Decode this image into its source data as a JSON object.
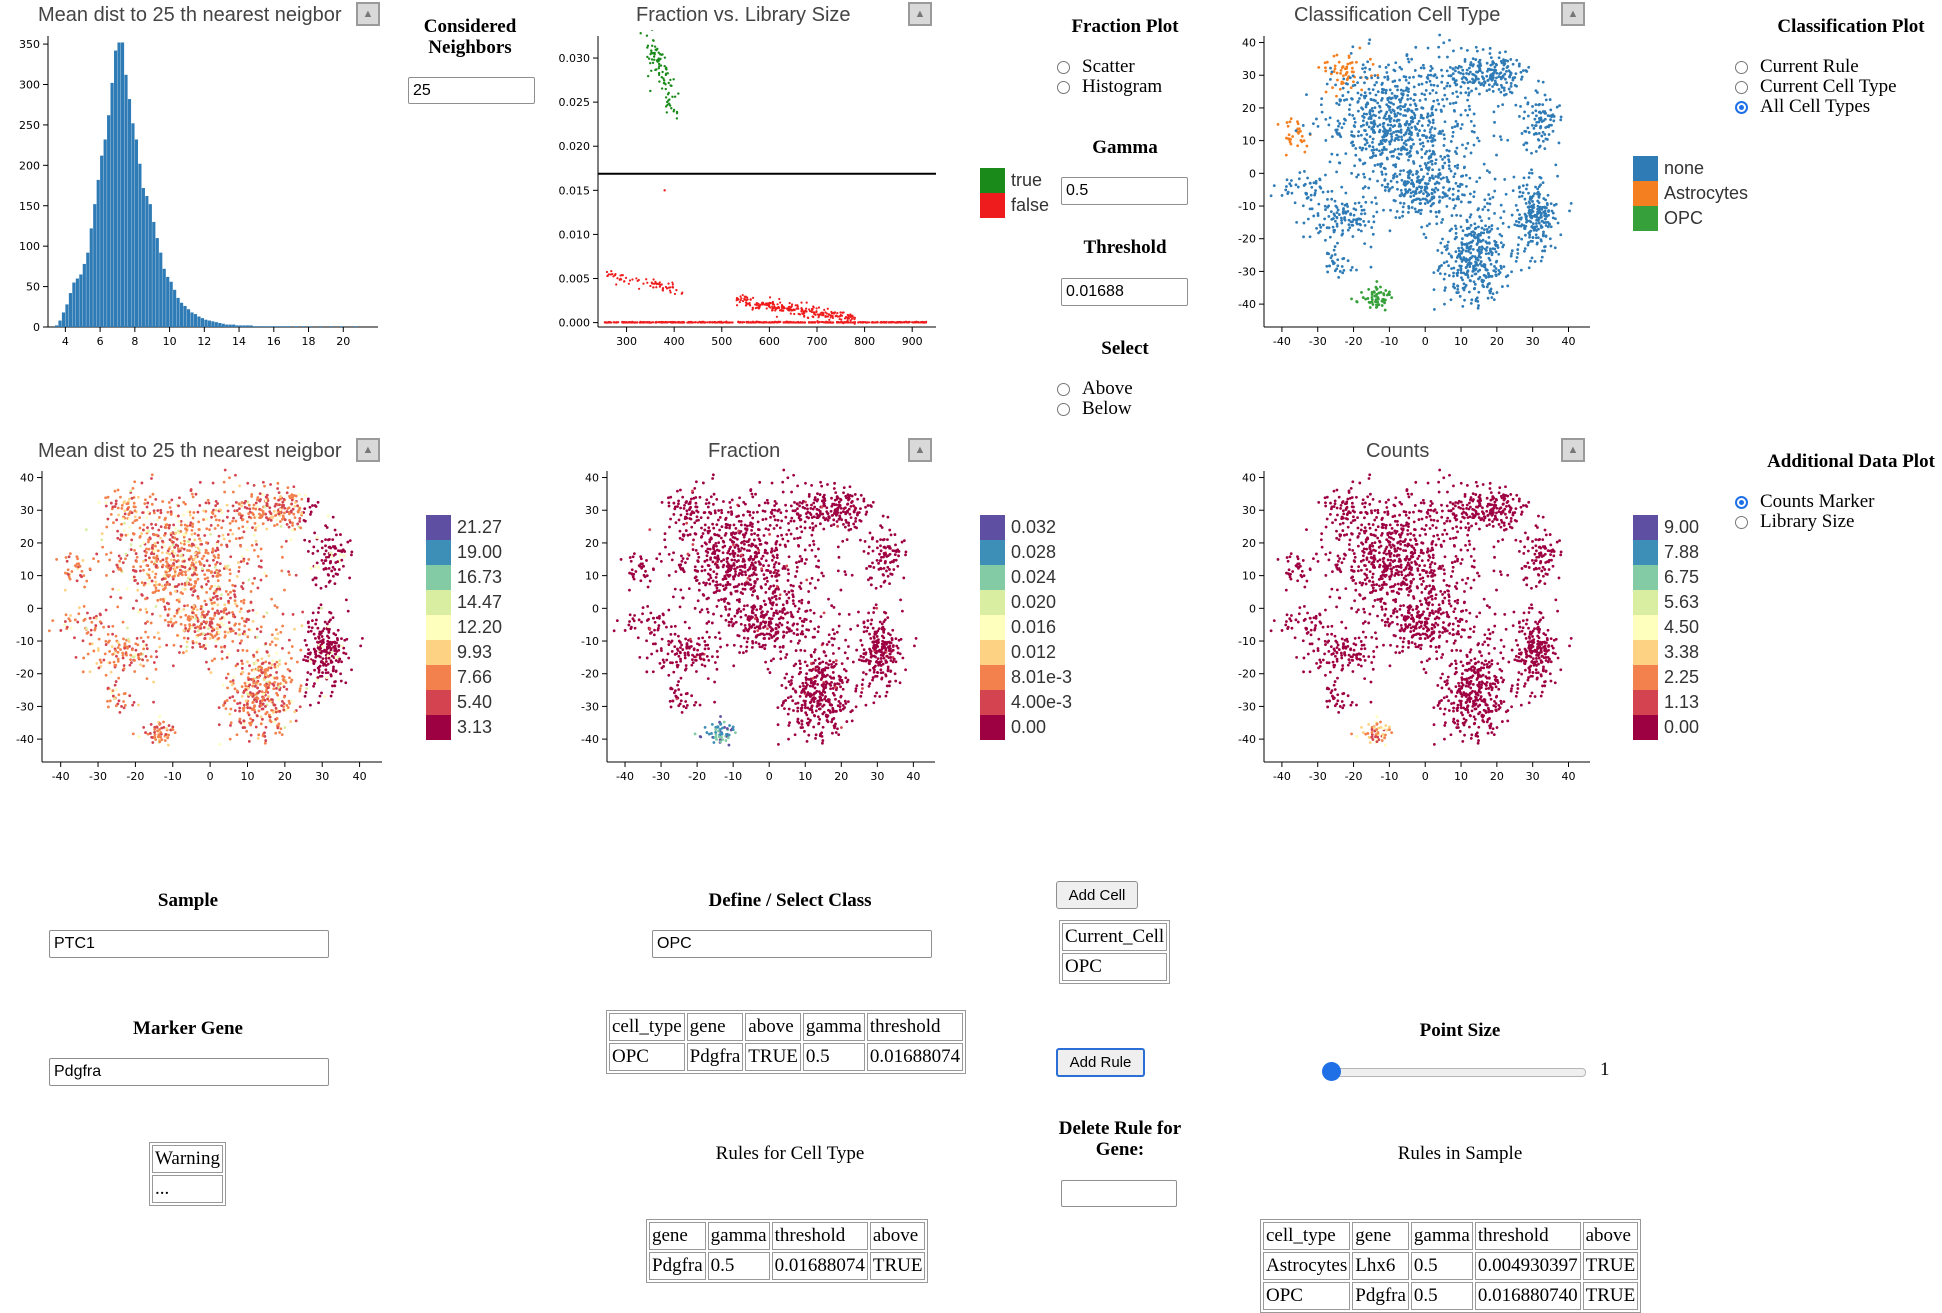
{
  "panels": {
    "hist_top": {
      "title": "Mean dist to 25 th nearest neigbor"
    },
    "frac_lib": {
      "title": "Fraction vs. Library Size"
    },
    "class_cell": {
      "title": "Classification Cell Type"
    },
    "mean_tsne": {
      "title": "Mean dist to 25 th nearest neigbor"
    },
    "fraction": {
      "title": "Fraction"
    },
    "counts": {
      "title": "Counts"
    }
  },
  "controls": {
    "considered_neighbors": {
      "label": "Considered Neighbors",
      "value": "25"
    },
    "fraction_plot": {
      "label": "Fraction Plot",
      "options": [
        "Scatter",
        "Histogram"
      ],
      "selected": null
    },
    "gamma": {
      "label": "Gamma",
      "value": "0.5"
    },
    "threshold": {
      "label": "Threshold",
      "value": "0.01688"
    },
    "select": {
      "label": "Select",
      "options": [
        "Above",
        "Below"
      ],
      "selected": null
    },
    "classification_plot": {
      "label": "Classification Plot",
      "options": [
        "Current Rule",
        "Current Cell Type",
        "All Cell Types"
      ],
      "selected": "All Cell Types"
    },
    "additional_plot": {
      "label": "Additional Data Plot",
      "options": [
        "Counts Marker",
        "Library Size"
      ],
      "selected": "Counts Marker"
    },
    "sample": {
      "label": "Sample",
      "value": "PTC1"
    },
    "marker_gene": {
      "label": "Marker Gene",
      "value": "Pdgfra"
    },
    "define_class": {
      "label": "Define / Select Class",
      "value": "OPC"
    },
    "add_cell": {
      "label": "Add Cell"
    },
    "add_rule": {
      "label": "Add Rule"
    },
    "delete_rule": {
      "label": "Delete Rule for Gene:",
      "value": ""
    },
    "point_size": {
      "label": "Point Size",
      "value": "1",
      "fraction": 0.0
    }
  },
  "tables": {
    "warning": {
      "rows": [
        [
          "Warning"
        ],
        [
          "..."
        ]
      ]
    },
    "current_cell": {
      "rows": [
        [
          "Current_Cell"
        ],
        [
          "OPC"
        ]
      ]
    },
    "rule": {
      "headers": [
        "cell_type",
        "gene",
        "above",
        "gamma",
        "threshold"
      ],
      "rows": [
        [
          "OPC",
          "Pdgfra",
          "TRUE",
          "0.5",
          "0.01688074"
        ]
      ]
    },
    "rules_for_cell_type": {
      "title": "Rules for Cell Type",
      "headers": [
        "gene",
        "gamma",
        "threshold",
        "above"
      ],
      "rows": [
        [
          "Pdgfra",
          "0.5",
          "0.01688074",
          "TRUE"
        ]
      ]
    },
    "rules_in_sample": {
      "title": "Rules in Sample",
      "headers": [
        "cell_type",
        "gene",
        "gamma",
        "threshold",
        "above"
      ],
      "rows": [
        [
          "Astrocytes",
          "Lhx6",
          "0.5",
          "0.004930397",
          "TRUE"
        ],
        [
          "OPC",
          "Pdgfra",
          "0.5",
          "0.016880740",
          "TRUE"
        ]
      ]
    }
  },
  "legends": {
    "fraction_threshold": [
      {
        "label": "true",
        "color": "#1a8a1a"
      },
      {
        "label": "false",
        "color": "#ee1c1c"
      }
    ],
    "cell_types": [
      {
        "label": "none",
        "color": "#2f7bb6"
      },
      {
        "label": "Astrocytes",
        "color": "#f47f20"
      },
      {
        "label": "OPC",
        "color": "#36a13a"
      }
    ],
    "mean_dist": [
      {
        "label": "21.27",
        "color": "#5e4fa2"
      },
      {
        "label": "19.00",
        "color": "#3d8fb7"
      },
      {
        "label": "16.73",
        "color": "#83cba4"
      },
      {
        "label": "14.47",
        "color": "#d9eea0"
      },
      {
        "label": "12.20",
        "color": "#fefebd"
      },
      {
        "label": "9.93",
        "color": "#fdd283"
      },
      {
        "label": "7.66",
        "color": "#f3814d"
      },
      {
        "label": "5.40",
        "color": "#d34350"
      },
      {
        "label": "3.13",
        "color": "#9e0142"
      }
    ],
    "fraction": [
      {
        "label": "0.032",
        "color": "#5e4fa2"
      },
      {
        "label": "0.028",
        "color": "#3d8fb7"
      },
      {
        "label": "0.024",
        "color": "#83cba4"
      },
      {
        "label": "0.020",
        "color": "#d9eea0"
      },
      {
        "label": "0.016",
        "color": "#fefebd"
      },
      {
        "label": "0.012",
        "color": "#fdd283"
      },
      {
        "label": "8.01e-3",
        "color": "#f3814d"
      },
      {
        "label": "4.00e-3",
        "color": "#d34350"
      },
      {
        "label": "0.00",
        "color": "#9e0142"
      }
    ],
    "counts": [
      {
        "label": "9.00",
        "color": "#5e4fa2"
      },
      {
        "label": "7.88",
        "color": "#3d8fb7"
      },
      {
        "label": "6.75",
        "color": "#83cba4"
      },
      {
        "label": "5.63",
        "color": "#d9eea0"
      },
      {
        "label": "4.50",
        "color": "#fefebd"
      },
      {
        "label": "3.38",
        "color": "#fdd283"
      },
      {
        "label": "2.25",
        "color": "#f3814d"
      },
      {
        "label": "1.13",
        "color": "#d34350"
      },
      {
        "label": "0.00",
        "color": "#9e0142"
      }
    ]
  },
  "chart_data": [
    {
      "id": "hist",
      "type": "bar",
      "title": "Mean dist to 25 th nearest neigbor",
      "xlim": [
        3,
        22
      ],
      "ylim": [
        0,
        360
      ],
      "xticks": [
        4,
        6,
        8,
        10,
        12,
        14,
        16,
        18,
        20
      ],
      "yticks": [
        0,
        50,
        100,
        150,
        200,
        250,
        300,
        350
      ],
      "bin_width": 0.2,
      "x_start": 3.4,
      "values": [
        2,
        8,
        18,
        28,
        42,
        55,
        60,
        65,
        78,
        92,
        122,
        152,
        182,
        212,
        232,
        262,
        302,
        342,
        352,
        352,
        312,
        282,
        252,
        232,
        202,
        172,
        162,
        152,
        130,
        110,
        92,
        72,
        62,
        56,
        46,
        36,
        30,
        26,
        22,
        18,
        16,
        13,
        11,
        9,
        8,
        7,
        6,
        5,
        4,
        3,
        3,
        3,
        2,
        2,
        2,
        2,
        2,
        1,
        1,
        1,
        1,
        1,
        1,
        1,
        1,
        1,
        1,
        1,
        0,
        1,
        0,
        1,
        0,
        1,
        0,
        0,
        1,
        0,
        0,
        1,
        0,
        0,
        1,
        0,
        0,
        0,
        1
      ],
      "color": "#2f7bb6"
    },
    {
      "id": "fraclib",
      "type": "scatter",
      "title": "Fraction vs. Library Size",
      "xlim": [
        240,
        950
      ],
      "ylim": [
        -0.0005,
        0.0325
      ],
      "xticks": [
        300,
        400,
        500,
        600,
        700,
        800,
        900
      ],
      "yticks": [
        0.0,
        0.005,
        0.01,
        0.015,
        0.02,
        0.025,
        0.03
      ],
      "ytick_labels": [
        "0.000",
        "0.005",
        "0.010",
        "0.015",
        "0.020",
        "0.025",
        "0.030"
      ],
      "threshold": 0.01688,
      "series": [
        {
          "name": "true",
          "color": "#1a8a1a",
          "cluster": {
            "x": [
              345,
              405
            ],
            "y": [
              0.0225,
              0.032
            ],
            "n": 90
          }
        },
        {
          "name": "false",
          "color": "#ee1c1c",
          "bands": [
            {
              "x": [
                250,
                930
              ],
              "y": 0.0,
              "n": 500
            },
            {
              "x": [
                530,
                780
              ],
              "y": [
                0.0005,
                0.0025
              ],
              "n": 250
            },
            {
              "x": [
                255,
                420
              ],
              "y": [
                0.0035,
                0.0055
              ],
              "n": 70
            }
          ]
        }
      ]
    },
    {
      "id": "classtsne",
      "type": "scatter",
      "title": "Classification Cell Type",
      "xlim": [
        -45,
        46
      ],
      "ylim": [
        -47,
        42
      ],
      "xticks": [
        -40,
        -30,
        -20,
        -10,
        0,
        10,
        20,
        30,
        40
      ],
      "yticks": [
        -40,
        -30,
        -20,
        -10,
        0,
        10,
        20,
        30,
        40
      ],
      "color_by": "celltype"
    },
    {
      "id": "meantsne",
      "type": "scatter",
      "title": "Mean dist to 25 th nearest neigbor",
      "xlim": [
        -45,
        46
      ],
      "ylim": [
        -47,
        42
      ],
      "xticks": [
        -40,
        -30,
        -20,
        -10,
        0,
        10,
        20,
        30,
        40
      ],
      "yticks": [
        -40,
        -30,
        -20,
        -10,
        0,
        10,
        20,
        30,
        40
      ],
      "color_by": "meandist"
    },
    {
      "id": "fractsne",
      "type": "scatter",
      "title": "Fraction",
      "xlim": [
        -45,
        46
      ],
      "ylim": [
        -47,
        42
      ],
      "xticks": [
        -40,
        -30,
        -20,
        -10,
        0,
        10,
        20,
        30,
        40
      ],
      "yticks": [
        -40,
        -30,
        -20,
        -10,
        0,
        10,
        20,
        30,
        40
      ],
      "color_by": "fraction"
    },
    {
      "id": "counttsne",
      "type": "scatter",
      "title": "Counts",
      "xlim": [
        -45,
        46
      ],
      "ylim": [
        -47,
        42
      ],
      "xticks": [
        -40,
        -30,
        -20,
        -10,
        0,
        10,
        20,
        30,
        40
      ],
      "yticks": [
        -40,
        -30,
        -20,
        -10,
        0,
        10,
        20,
        30,
        40
      ],
      "color_by": "counts"
    }
  ],
  "tsne_clusters": [
    {
      "c": [
        -22,
        31
      ],
      "s": [
        4,
        3
      ],
      "n": 60,
      "type": "Astrocytes"
    },
    {
      "c": [
        -36,
        12
      ],
      "s": [
        2,
        3
      ],
      "n": 30,
      "type": "Astrocytes"
    },
    {
      "c": [
        -14,
        -38
      ],
      "s": [
        2.5,
        2
      ],
      "n": 60,
      "type": "OPC"
    },
    {
      "c": [
        -10,
        16
      ],
      "s": [
        9,
        10
      ],
      "n": 600,
      "type": "none"
    },
    {
      "c": [
        18,
        30
      ],
      "s": [
        7,
        3
      ],
      "n": 220,
      "type": "none"
    },
    {
      "c": [
        32,
        16
      ],
      "s": [
        3,
        4
      ],
      "n": 90,
      "type": "none"
    },
    {
      "c": [
        31,
        -13
      ],
      "s": [
        3,
        6
      ],
      "n": 230,
      "type": "none"
    },
    {
      "c": [
        14,
        -26
      ],
      "s": [
        5,
        8
      ],
      "n": 380,
      "type": "none"
    },
    {
      "c": [
        -24,
        -14
      ],
      "s": [
        5,
        3
      ],
      "n": 120,
      "type": "none"
    },
    {
      "c": [
        -1,
        -5
      ],
      "s": [
        6,
        4
      ],
      "n": 180,
      "type": "none"
    },
    {
      "c": [
        -33,
        -5
      ],
      "s": [
        3,
        2
      ],
      "n": 40,
      "type": "none"
    },
    {
      "c": [
        -25,
        -28
      ],
      "s": [
        2,
        2
      ],
      "n": 30,
      "type": "none"
    },
    {
      "c": [
        5,
        10
      ],
      "s": [
        12,
        14
      ],
      "n": 200,
      "type": "none"
    }
  ]
}
